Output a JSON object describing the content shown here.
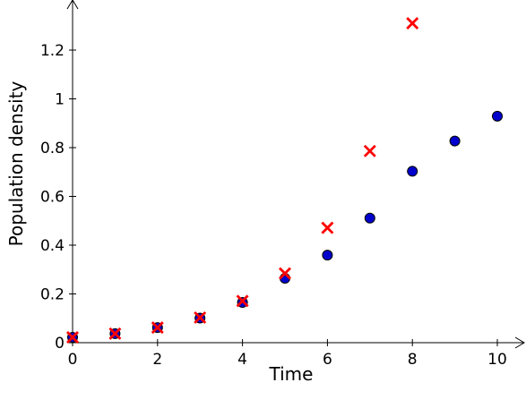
{
  "chart_data": {
    "type": "scatter",
    "xlabel": "Time",
    "ylabel": "Population density",
    "xlim": [
      0,
      10.6
    ],
    "ylim": [
      0,
      1.4
    ],
    "xticks": [
      0,
      2,
      4,
      6,
      8,
      10
    ],
    "yticks": [
      0,
      0.2,
      0.4,
      0.6,
      0.8,
      1,
      1.2
    ],
    "xtick_labels": [
      "0",
      "2",
      "4",
      "6",
      "8",
      "10"
    ],
    "ytick_labels": [
      "0",
      "0.2",
      "0.4",
      "0.6",
      "0.8",
      "1",
      "1.2"
    ],
    "grid": false,
    "series": [
      {
        "marker": "circle",
        "color": "#0000cc",
        "edge_color": "#000000",
        "x": [
          0,
          1,
          2,
          3,
          4,
          5,
          6,
          7,
          8,
          9,
          10
        ],
        "y": [
          0.022,
          0.037,
          0.062,
          0.101,
          0.165,
          0.264,
          0.359,
          0.511,
          0.703,
          0.827,
          0.929
        ]
      },
      {
        "marker": "x",
        "color": "#ff0000",
        "x": [
          0,
          1,
          2,
          3,
          4,
          5,
          6,
          7,
          8
        ],
        "y": [
          0.022,
          0.037,
          0.062,
          0.103,
          0.171,
          0.284,
          0.471,
          0.786,
          1.31
        ]
      }
    ]
  }
}
